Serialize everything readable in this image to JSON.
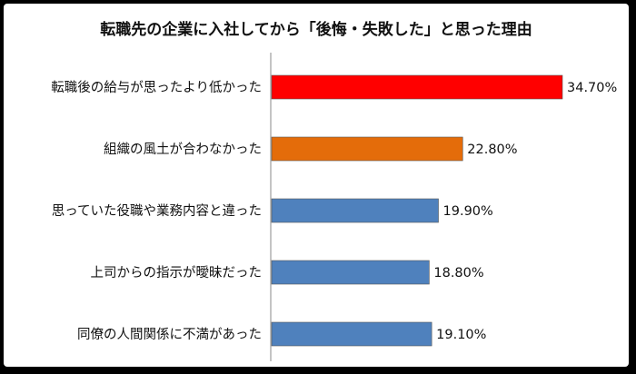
{
  "chart_data": {
    "type": "bar",
    "orientation": "horizontal",
    "title": "転職先の企業に入社してから「後悔・失敗した」と思った理由",
    "categories": [
      "転職後の給与が思ったより低かった",
      "組織の風土が合わなかった",
      "思っていた役職や業務内容と違った",
      "上司からの指示が曖昧だった",
      "同僚の人間関係に不満があった"
    ],
    "values": [
      34.7,
      22.8,
      19.9,
      18.8,
      19.1
    ],
    "value_labels": [
      "34.70%",
      "22.80%",
      "19.90%",
      "18.80%",
      "19.10%"
    ],
    "colors": [
      "#ff0000",
      "#e46c0a",
      "#4f81bd",
      "#4f81bd",
      "#4f81bd"
    ],
    "xlim": [
      0,
      36
    ],
    "grid": false,
    "legend": "none",
    "xlabel": "",
    "ylabel": ""
  }
}
